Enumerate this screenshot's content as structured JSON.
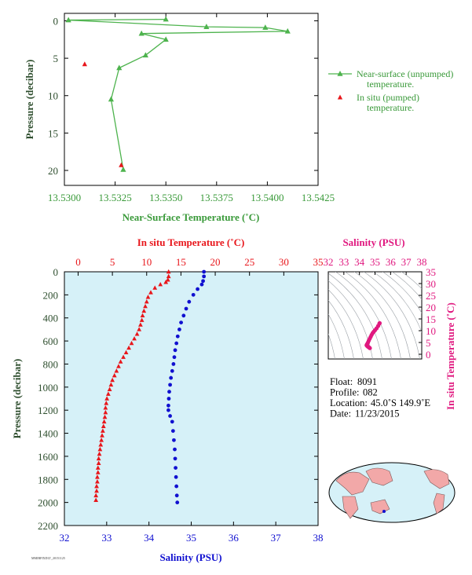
{
  "colors": {
    "green": "#4db34d",
    "red": "#e8161b",
    "blue": "#1010d0",
    "magenta": "#e0187f",
    "axis_dark": "#2f4f2f",
    "plot_bg": "#d6f1f8",
    "land": "#f2a8a8",
    "ocean": "#d6f1f8"
  },
  "chart_data": [
    {
      "type": "line",
      "xlabel": "Near-Surface Temperature (˚C)",
      "ylabel": "Pressure (decibar)",
      "xlim": [
        13.53,
        13.5425
      ],
      "ylim": [
        22,
        -1
      ],
      "xticks": [
        13.53,
        13.5325,
        13.535,
        13.5375,
        13.54,
        13.5425
      ],
      "xtick_labels": [
        "13.5300",
        "13.5325",
        "13.5350",
        "13.5375",
        "13.5400",
        "13.5425"
      ],
      "yticks": [
        0,
        5,
        10,
        15,
        20
      ],
      "ytick_labels": [
        "0",
        "5",
        "10",
        "15",
        "20"
      ],
      "legend_position": "right",
      "series": [
        {
          "name": "Near-surface (unpumped) temperature.",
          "marker": "triangle",
          "x": [
            13.535,
            13.5302,
            13.537,
            13.5399,
            13.541,
            13.5338,
            13.535,
            13.534,
            13.5327,
            13.5323,
            13.5329
          ],
          "y": [
            -0.2,
            -0.1,
            0.8,
            0.9,
            1.4,
            1.7,
            2.5,
            4.6,
            6.3,
            10.5,
            19.9
          ],
          "legend": [
            "Near-surface (unpumped)",
            "temperature."
          ]
        },
        {
          "name": "In situ (pumped) temperature.",
          "marker": "triangle",
          "x": [
            13.531,
            13.5328
          ],
          "y": [
            5.8,
            19.3
          ],
          "legend": [
            "In situ (pumped)",
            "temperature."
          ]
        }
      ]
    },
    {
      "type": "scatter",
      "top_xlabel": "In situ Temperature (˚C)",
      "bottom_xlabel": "Salinity (PSU)",
      "ylabel": "Pressure (decibar)",
      "temp_lim": [
        -2,
        35
      ],
      "temp_ticks": [
        0,
        5,
        10,
        15,
        20,
        25,
        30,
        35
      ],
      "temp_tick_labels": [
        "0",
        "5",
        "10",
        "15",
        "20",
        "25",
        "30",
        "35"
      ],
      "sal_lim": [
        32,
        38
      ],
      "sal_ticks": [
        32,
        33,
        34,
        35,
        36,
        37,
        38
      ],
      "sal_tick_labels": [
        "32",
        "33",
        "34",
        "35",
        "36",
        "37",
        "38"
      ],
      "ylim": [
        2200,
        0
      ],
      "yticks": [
        0,
        200,
        400,
        600,
        800,
        1000,
        1200,
        1400,
        1600,
        1800,
        2000,
        2200
      ],
      "ytick_labels": [
        "0",
        "200",
        "400",
        "600",
        "800",
        "1000",
        "1200",
        "1400",
        "1600",
        "1800",
        "2000",
        "2200"
      ],
      "temperature_profile": {
        "marker": "triangle",
        "points": [
          [
            13.2,
            0
          ],
          [
            13.2,
            40
          ],
          [
            13.1,
            70
          ],
          [
            12.8,
            90
          ],
          [
            12.0,
            110
          ],
          [
            11.2,
            140
          ],
          [
            10.6,
            180
          ],
          [
            10.2,
            220
          ],
          [
            10.0,
            260
          ],
          [
            9.8,
            300
          ],
          [
            9.6,
            340
          ],
          [
            9.4,
            380
          ],
          [
            9.3,
            420
          ],
          [
            9.1,
            460
          ],
          [
            8.9,
            500
          ],
          [
            8.6,
            540
          ],
          [
            8.2,
            580
          ],
          [
            7.8,
            620
          ],
          [
            7.4,
            660
          ],
          [
            7.0,
            700
          ],
          [
            6.6,
            740
          ],
          [
            6.2,
            780
          ],
          [
            5.9,
            820
          ],
          [
            5.6,
            860
          ],
          [
            5.3,
            900
          ],
          [
            5.0,
            940
          ],
          [
            4.8,
            980
          ],
          [
            4.6,
            1020
          ],
          [
            4.4,
            1060
          ],
          [
            4.2,
            1100
          ],
          [
            4.1,
            1140
          ],
          [
            4.0,
            1180
          ],
          [
            4.0,
            1220
          ],
          [
            3.9,
            1260
          ],
          [
            3.8,
            1300
          ],
          [
            3.7,
            1340
          ],
          [
            3.6,
            1380
          ],
          [
            3.5,
            1420
          ],
          [
            3.4,
            1460
          ],
          [
            3.3,
            1500
          ],
          [
            3.2,
            1540
          ],
          [
            3.1,
            1580
          ],
          [
            3.0,
            1620
          ],
          [
            3.0,
            1660
          ],
          [
            2.9,
            1700
          ],
          [
            2.9,
            1740
          ],
          [
            2.8,
            1780
          ],
          [
            2.8,
            1820
          ],
          [
            2.7,
            1860
          ],
          [
            2.7,
            1900
          ],
          [
            2.6,
            1940
          ],
          [
            2.6,
            1980
          ]
        ]
      },
      "salinity_profile": {
        "marker": "circle",
        "points": [
          [
            35.3,
            0
          ],
          [
            35.3,
            40
          ],
          [
            35.28,
            80
          ],
          [
            35.25,
            110
          ],
          [
            35.15,
            150
          ],
          [
            35.05,
            200
          ],
          [
            34.95,
            260
          ],
          [
            34.88,
            320
          ],
          [
            34.82,
            380
          ],
          [
            34.76,
            440
          ],
          [
            34.72,
            500
          ],
          [
            34.68,
            560
          ],
          [
            34.65,
            620
          ],
          [
            34.62,
            680
          ],
          [
            34.6,
            740
          ],
          [
            34.58,
            800
          ],
          [
            34.55,
            860
          ],
          [
            34.52,
            920
          ],
          [
            34.5,
            980
          ],
          [
            34.48,
            1040
          ],
          [
            34.47,
            1100
          ],
          [
            34.46,
            1160
          ],
          [
            34.46,
            1200
          ],
          [
            34.5,
            1250
          ],
          [
            34.55,
            1300
          ],
          [
            34.57,
            1380
          ],
          [
            34.59,
            1460
          ],
          [
            34.61,
            1540
          ],
          [
            34.62,
            1620
          ],
          [
            34.63,
            1700
          ],
          [
            34.64,
            1780
          ],
          [
            34.65,
            1860
          ],
          [
            34.66,
            1940
          ],
          [
            34.67,
            2000
          ]
        ]
      }
    },
    {
      "type": "scatter",
      "xlabel": "Salinity (PSU)",
      "ylabel": "In situ Temperature (˚C)",
      "xlim": [
        32,
        38
      ],
      "ylim": [
        -2,
        35
      ],
      "xticks": [
        32,
        33,
        34,
        35,
        36,
        37,
        38
      ],
      "xtick_labels": [
        "32",
        "33",
        "34",
        "35",
        "36",
        "37",
        "38"
      ],
      "yticks": [
        0,
        5,
        10,
        15,
        20,
        25,
        30,
        35
      ],
      "ytick_labels": [
        "0",
        "5",
        "10",
        "15",
        "20",
        "25",
        "30",
        "35"
      ],
      "points": [
        [
          35.3,
          13.2
        ],
        [
          35.28,
          13.0
        ],
        [
          35.2,
          12.0
        ],
        [
          35.1,
          11.0
        ],
        [
          35.0,
          10.2
        ],
        [
          34.92,
          9.6
        ],
        [
          34.85,
          9.0
        ],
        [
          34.78,
          8.2
        ],
        [
          34.72,
          7.4
        ],
        [
          34.66,
          6.6
        ],
        [
          34.6,
          5.8
        ],
        [
          34.55,
          5.0
        ],
        [
          34.5,
          4.4
        ],
        [
          34.47,
          4.0
        ],
        [
          34.46,
          3.8
        ],
        [
          34.5,
          3.5
        ],
        [
          34.55,
          3.2
        ],
        [
          34.6,
          3.0
        ],
        [
          34.64,
          2.8
        ],
        [
          34.67,
          2.6
        ]
      ]
    }
  ],
  "info": {
    "float_label": "Float:",
    "float_value": "8091",
    "profile_label": "Profile:",
    "profile_value": "082",
    "location_label": "Location:",
    "location_value": "45.0˚S  149.9˚E",
    "date_label": "Date:",
    "date_value": "11/23/2015"
  },
  "footer_code": "MMIRFIXDLT_20151125"
}
